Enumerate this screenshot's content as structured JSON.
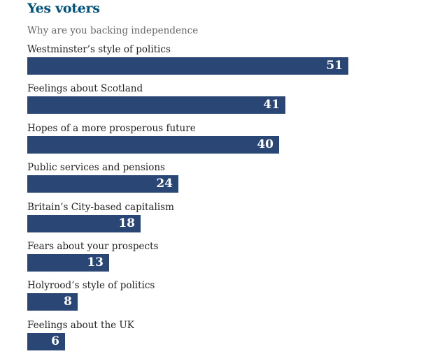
{
  "chart_data": {
    "type": "bar",
    "orientation": "horizontal",
    "title": "Yes voters",
    "subtitle": "Why are you backing independence",
    "categories": [
      "Westminster’s style of politics",
      "Feelings about Scotland",
      "Hopes of a more prosperous future",
      "Public services and pensions",
      "Britain’s City-based capitalism",
      "Fears about your prospects",
      "Holyrood’s style of politics",
      "Feelings about the UK"
    ],
    "values": [
      51,
      41,
      40,
      24,
      18,
      13,
      8,
      6
    ],
    "xlim": [
      0,
      51
    ],
    "bar_color": "#2a4675",
    "title_color": "#00527a"
  }
}
